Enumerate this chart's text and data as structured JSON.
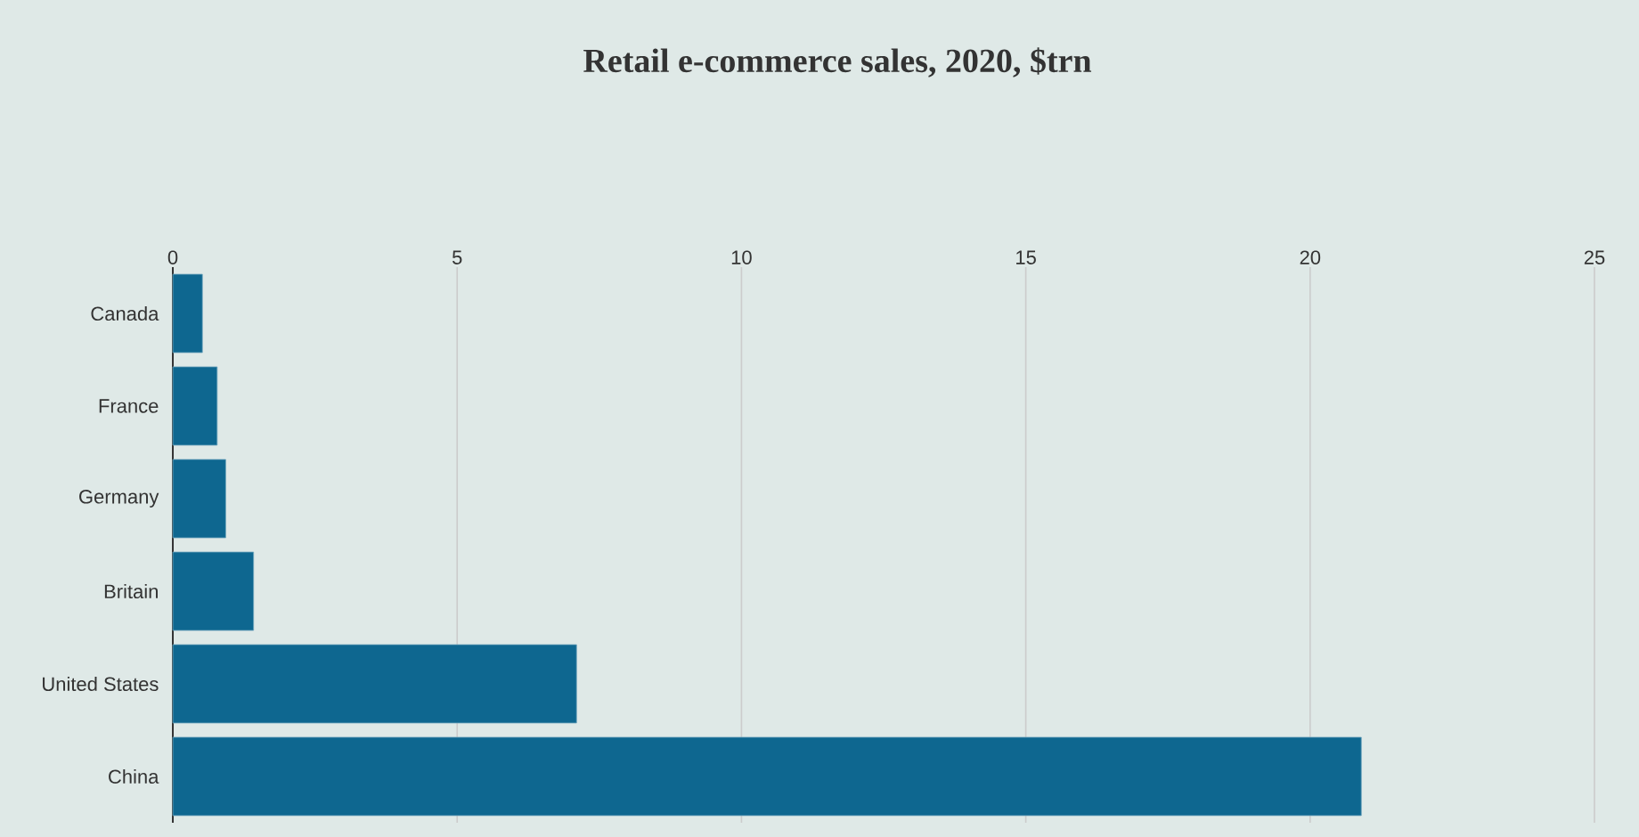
{
  "chart_data": {
    "type": "bar",
    "orientation": "horizontal",
    "title": "Retail e-commerce sales, 2020, $trn",
    "categories": [
      "Canada",
      "France",
      "Germany",
      "Britain",
      "United States",
      "China"
    ],
    "values": [
      0.52,
      0.78,
      0.93,
      1.42,
      7.1,
      20.9
    ],
    "color": "#0e6790",
    "xlim": [
      0,
      25
    ],
    "xticks": [
      0,
      5,
      10,
      15,
      20,
      25
    ],
    "grid": "x"
  }
}
